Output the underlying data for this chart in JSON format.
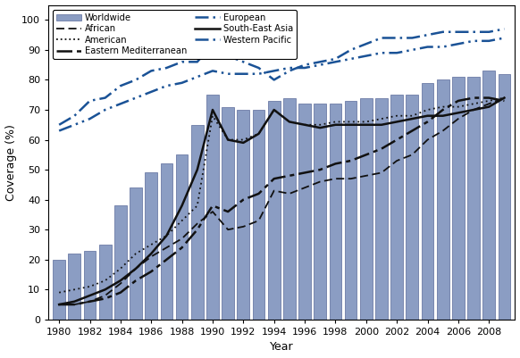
{
  "years": [
    1980,
    1981,
    1982,
    1983,
    1984,
    1985,
    1986,
    1987,
    1988,
    1989,
    1990,
    1991,
    1992,
    1993,
    1994,
    1995,
    1996,
    1997,
    1998,
    1999,
    2000,
    2001,
    2002,
    2003,
    2004,
    2005,
    2006,
    2007,
    2008,
    2009
  ],
  "worldwide_bars": [
    20,
    22,
    23,
    25,
    38,
    44,
    49,
    52,
    55,
    65,
    75,
    71,
    70,
    70,
    73,
    74,
    72,
    72,
    72,
    73,
    74,
    74,
    75,
    75,
    79,
    80,
    81,
    81,
    83,
    82
  ],
  "african": [
    5,
    5,
    6,
    8,
    12,
    17,
    21,
    24,
    27,
    32,
    36,
    30,
    31,
    33,
    43,
    42,
    44,
    46,
    47,
    47,
    48,
    49,
    53,
    55,
    60,
    63,
    67,
    70,
    72,
    74
  ],
  "american": [
    9,
    10,
    11,
    13,
    17,
    22,
    25,
    28,
    33,
    38,
    68,
    60,
    60,
    62,
    70,
    66,
    65,
    65,
    66,
    66,
    66,
    67,
    68,
    68,
    70,
    71,
    71,
    72,
    73,
    74
  ],
  "eastern_mediterranean": [
    5,
    5,
    6,
    7,
    9,
    13,
    16,
    20,
    24,
    30,
    38,
    36,
    40,
    42,
    47,
    48,
    49,
    50,
    52,
    53,
    55,
    57,
    60,
    63,
    66,
    70,
    73,
    74,
    74,
    73
  ],
  "european": [
    65,
    68,
    73,
    74,
    78,
    80,
    83,
    84,
    86,
    86,
    92,
    88,
    86,
    84,
    80,
    83,
    85,
    86,
    87,
    90,
    92,
    94,
    94,
    94,
    95,
    96,
    96,
    96,
    96,
    97
  ],
  "south_east_asia": [
    5,
    6,
    8,
    10,
    13,
    17,
    22,
    28,
    38,
    50,
    70,
    60,
    59,
    62,
    70,
    66,
    65,
    64,
    65,
    65,
    65,
    65,
    66,
    67,
    68,
    68,
    69,
    70,
    71,
    74
  ],
  "western_pacific": [
    63,
    65,
    67,
    70,
    72,
    74,
    76,
    78,
    79,
    81,
    83,
    82,
    82,
    82,
    83,
    84,
    84,
    85,
    86,
    87,
    88,
    89,
    89,
    90,
    91,
    91,
    92,
    93,
    93,
    94
  ],
  "bar_color": "#8b9dc3",
  "bar_edge_color": "#5a6a9a",
  "african_color": "#111111",
  "american_color": "#111111",
  "eastern_med_color": "#111111",
  "european_color": "#1a5296",
  "south_east_asia_color": "#111111",
  "western_pacific_color": "#1a5296",
  "xlabel": "Year",
  "ylabel": "Coverage (%)",
  "ylim": [
    0,
    105
  ],
  "yticks": [
    0,
    10,
    20,
    30,
    40,
    50,
    60,
    70,
    80,
    90,
    100
  ]
}
